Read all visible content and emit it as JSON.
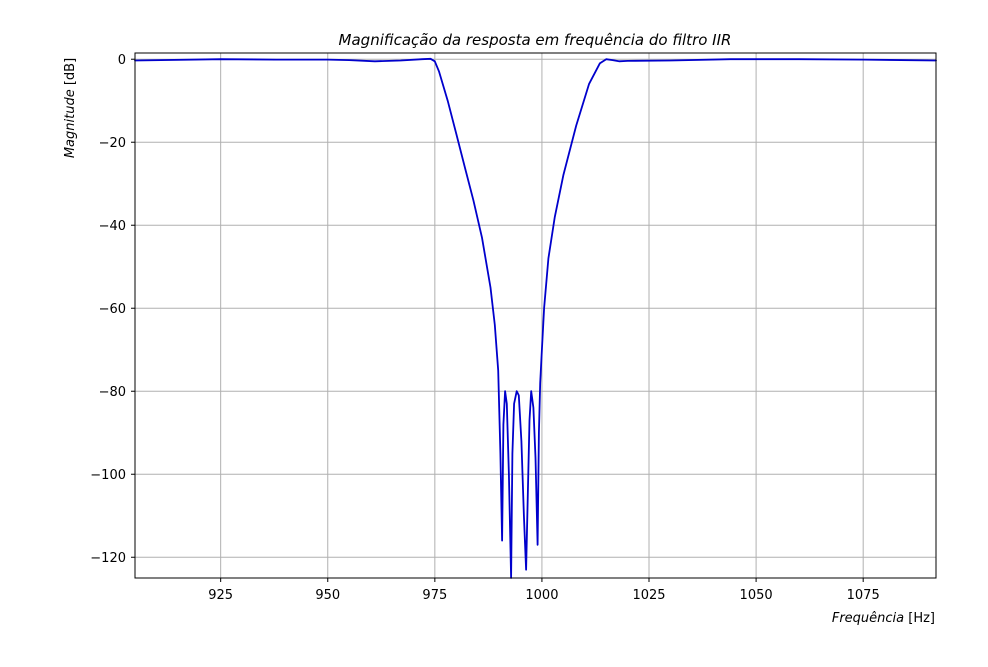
{
  "chart_data": {
    "type": "line",
    "title": "Magnificação da resposta em frequência do filtro IIR",
    "xlabel_italic": "Frequência",
    "xlabel_unit": " [Hz]",
    "ylabel_italic": "Magnitude",
    "ylabel_unit": " [dB]",
    "xlim": [
      905,
      1092
    ],
    "ylim": [
      -125,
      1.5
    ],
    "xticks": [
      925,
      950,
      975,
      1000,
      1025,
      1050,
      1075
    ],
    "yticks": [
      0,
      -20,
      -40,
      -60,
      -80,
      -100,
      -120
    ],
    "xtick_labels": [
      "925",
      "950",
      "975",
      "1000",
      "1025",
      "1050",
      "1075"
    ],
    "ytick_labels": [
      "0",
      "−20",
      "−40",
      "−60",
      "−80",
      "−100",
      "−120"
    ],
    "grid": true,
    "line_color": "#0000cc",
    "series": [
      {
        "x": [
          905,
          925,
          938,
          950,
          955,
          961,
          967,
          972,
          974,
          975,
          976,
          978,
          980,
          982,
          984,
          986,
          988,
          989,
          989.8,
          990.3,
          990.7,
          991.0,
          991.4,
          991.8,
          992.3,
          992.8,
          993.1,
          993.5,
          994.1,
          994.6,
          995.2,
          995.8,
          996.3,
          996.7,
          997.1,
          997.5,
          998.0,
          998.5,
          999.0,
          999.3,
          999.6,
          1000.0,
          1000.5,
          1001.5,
          1003,
          1005,
          1008,
          1011,
          1013.5,
          1015,
          1016.5,
          1018,
          1020,
          1030,
          1044,
          1060,
          1075,
          1092
        ],
        "y": [
          -0.3,
          0.0,
          -0.1,
          -0.1,
          -0.2,
          -0.5,
          -0.3,
          0.0,
          0.1,
          -0.5,
          -3,
          -10,
          -18,
          -26,
          -34,
          -43,
          -55,
          -64,
          -75,
          -95,
          -116,
          -88,
          -80,
          -83,
          -100,
          -125,
          -95,
          -83,
          -80,
          -81,
          -92,
          -110,
          -123,
          -105,
          -87,
          -80,
          -84,
          -96,
          -117,
          -90,
          -78,
          -70,
          -60,
          -48,
          -38,
          -28,
          -16,
          -6,
          -1,
          0.0,
          -0.2,
          -0.5,
          -0.4,
          -0.3,
          0.0,
          0.0,
          -0.1,
          -0.3
        ]
      }
    ]
  }
}
